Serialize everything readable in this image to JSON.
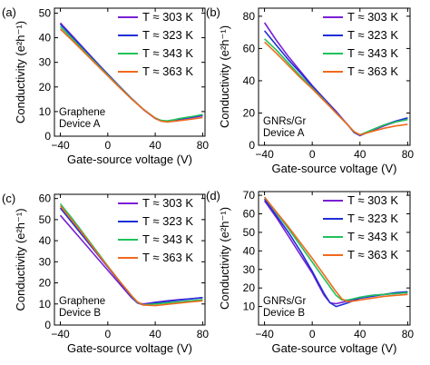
{
  "chart_data": [
    {
      "type": "line",
      "panel_label": "(a)",
      "annotation": [
        "Graphene",
        "Device A"
      ],
      "xlabel": "Gate-source voltage (V)",
      "ylabel": "Conductivity (e²h⁻¹)",
      "xlim": [
        -45,
        82
      ],
      "ylim": [
        0,
        52
      ],
      "xticks": [
        -40,
        0,
        40,
        80
      ],
      "yticks": [
        0,
        10,
        20,
        30,
        40,
        50
      ],
      "legend_position": "top-right",
      "series": [
        {
          "name": "T ≈ 303 K",
          "color": "#7a1fd6",
          "x": [
            -40,
            -30,
            -20,
            -10,
            0,
            10,
            20,
            30,
            40,
            45,
            50,
            55,
            60,
            70,
            80
          ],
          "y": [
            46,
            40.8,
            35.5,
            30.3,
            25.2,
            20.2,
            15.3,
            10.8,
            7.2,
            6.2,
            6.0,
            6.3,
            6.8,
            7.5,
            8.3
          ]
        },
        {
          "name": "T ≈ 323 K",
          "color": "#1f2fd6",
          "x": [
            -40,
            -30,
            -20,
            -10,
            0,
            10,
            20,
            30,
            40,
            45,
            50,
            55,
            60,
            70,
            80
          ],
          "y": [
            45.5,
            40.4,
            35.2,
            30.1,
            25.1,
            20.1,
            15.3,
            10.9,
            7.3,
            6.3,
            6.1,
            6.4,
            6.9,
            7.7,
            8.6
          ]
        },
        {
          "name": "T ≈ 343 K",
          "color": "#1fc25a",
          "x": [
            -40,
            -30,
            -20,
            -10,
            0,
            10,
            20,
            30,
            40,
            45,
            50,
            55,
            60,
            70,
            80
          ],
          "y": [
            44.5,
            39.6,
            34.6,
            29.7,
            24.8,
            19.9,
            15.2,
            10.9,
            7.4,
            6.4,
            6.2,
            6.6,
            7.1,
            7.9,
            8.8
          ]
        },
        {
          "name": "T ≈ 363 K",
          "color": "#f06a1c",
          "x": [
            -40,
            -30,
            -20,
            -10,
            0,
            10,
            20,
            30,
            40,
            45,
            50,
            55,
            60,
            70,
            80
          ],
          "y": [
            43.5,
            38.9,
            34.1,
            29.3,
            24.5,
            19.7,
            15.1,
            10.9,
            7.3,
            6.1,
            5.8,
            6.0,
            6.3,
            6.9,
            7.6
          ]
        }
      ]
    },
    {
      "type": "line",
      "panel_label": "(b)",
      "annotation": [
        "GNRs/Gr",
        "Device A"
      ],
      "xlabel": "Gate-source voltage (V)",
      "ylabel": "Conductivity (e²h⁻¹)",
      "xlim": [
        -45,
        82
      ],
      "ylim": [
        0,
        85
      ],
      "xticks": [
        -40,
        0,
        40,
        80
      ],
      "yticks": [
        0,
        20,
        40,
        60,
        80
      ],
      "legend_position": "top-right",
      "series": [
        {
          "name": "T ≈ 303 K",
          "color": "#7a1fd6",
          "x": [
            -40,
            -30,
            -20,
            -10,
            0,
            10,
            20,
            30,
            35,
            40,
            50,
            60,
            70,
            80
          ],
          "y": [
            76,
            65,
            55,
            46,
            37,
            29,
            21,
            12.5,
            8,
            6,
            9,
            12,
            14.5,
            16
          ]
        },
        {
          "name": "T ≈ 323 K",
          "color": "#1f2fd6",
          "x": [
            -40,
            -30,
            -20,
            -10,
            0,
            10,
            20,
            30,
            35,
            40,
            50,
            60,
            70,
            80
          ],
          "y": [
            71,
            62,
            53,
            45,
            36.5,
            28.5,
            20.5,
            12.5,
            8,
            6,
            9.5,
            12.5,
            15,
            17
          ]
        },
        {
          "name": "T ≈ 343 K",
          "color": "#1fc25a",
          "x": [
            -40,
            -30,
            -20,
            -10,
            0,
            10,
            20,
            30,
            35,
            40,
            50,
            60,
            70,
            80
          ],
          "y": [
            66,
            59,
            51,
            43,
            35.5,
            28,
            20,
            12.5,
            8.5,
            6.5,
            9.5,
            12.5,
            14.5,
            16
          ]
        },
        {
          "name": "T ≈ 363 K",
          "color": "#f06a1c",
          "x": [
            -40,
            -30,
            -20,
            -10,
            0,
            10,
            20,
            30,
            35,
            40,
            50,
            60,
            70,
            80
          ],
          "y": [
            64,
            57,
            49.5,
            42,
            35,
            27.5,
            20,
            12.5,
            8.5,
            6.5,
            8.5,
            10.5,
            12,
            13
          ]
        }
      ]
    },
    {
      "type": "line",
      "panel_label": "(c)",
      "annotation": [
        "Graphene",
        "Device B"
      ],
      "xlabel": "Gate-source voltage (V)",
      "ylabel": "Conductivity (e²h⁻¹)",
      "xlim": [
        -45,
        82
      ],
      "ylim": [
        0,
        62
      ],
      "xticks": [
        -40,
        0,
        40,
        80
      ],
      "yticks": [
        0,
        10,
        20,
        30,
        40,
        50,
        60
      ],
      "legend_position": "top-right",
      "series": [
        {
          "name": "T ≈ 303 K",
          "color": "#7a1fd6",
          "x": [
            -40,
            -30,
            -20,
            -10,
            0,
            10,
            20,
            25,
            30,
            40,
            50,
            60,
            70,
            80
          ],
          "y": [
            52,
            45.5,
            39,
            32.5,
            26,
            19.5,
            13,
            10.5,
            10,
            10.8,
            11.5,
            12,
            12.5,
            13
          ]
        },
        {
          "name": "T ≈ 323 K",
          "color": "#1f2fd6",
          "x": [
            -40,
            -30,
            -20,
            -10,
            0,
            10,
            20,
            25,
            30,
            40,
            50,
            60,
            70,
            80
          ],
          "y": [
            55.5,
            48.5,
            41.5,
            34.5,
            27.5,
            20.5,
            13.5,
            10.5,
            9.5,
            10.5,
            11.2,
            11.8,
            12.4,
            13
          ]
        },
        {
          "name": "T ≈ 343 K",
          "color": "#1fc25a",
          "x": [
            -40,
            -30,
            -20,
            -10,
            0,
            10,
            20,
            25,
            30,
            40,
            50,
            60,
            70,
            80
          ],
          "y": [
            57.5,
            50.5,
            43,
            35.5,
            28,
            20.8,
            13.8,
            10.8,
            9.6,
            10,
            10.5,
            11,
            11.5,
            12
          ]
        },
        {
          "name": "T ≈ 363 K",
          "color": "#f06a1c",
          "x": [
            -40,
            -30,
            -20,
            -10,
            0,
            10,
            20,
            25,
            30,
            40,
            50,
            60,
            70,
            80
          ],
          "y": [
            56.5,
            49.5,
            42.5,
            35,
            27.8,
            20.8,
            14,
            11,
            9.5,
            9.2,
            9.8,
            10.4,
            11,
            11.5
          ]
        }
      ]
    },
    {
      "type": "line",
      "panel_label": "(d)",
      "annotation": [
        "GNRs/Gr",
        "Device B"
      ],
      "xlabel": "Gate-source voltage (V)",
      "ylabel": "Conductivity (e²h⁻¹)",
      "xlim": [
        -45,
        82
      ],
      "ylim": [
        0,
        72
      ],
      "xticks": [
        -40,
        0,
        40,
        80
      ],
      "yticks": [
        10,
        20,
        30,
        40,
        50,
        60,
        70
      ],
      "legend_position": "top-right",
      "series": [
        {
          "name": "T ≈ 303 K",
          "color": "#7a1fd6",
          "x": [
            -40,
            -30,
            -20,
            -10,
            0,
            5,
            10,
            15,
            20,
            30,
            40,
            50,
            60,
            70,
            80
          ],
          "y": [
            67,
            58,
            48,
            38,
            28,
            22,
            16,
            12,
            11.5,
            13,
            15,
            16,
            16.5,
            17,
            17.5
          ]
        },
        {
          "name": "T ≈ 323 K",
          "color": "#1f2fd6",
          "x": [
            -40,
            -30,
            -20,
            -10,
            0,
            5,
            10,
            15,
            20,
            30,
            40,
            50,
            60,
            70,
            80
          ],
          "y": [
            68,
            59,
            50,
            40,
            29,
            23,
            17,
            12,
            10,
            12,
            14.5,
            15.5,
            16.5,
            17.5,
            18
          ]
        },
        {
          "name": "T ≈ 343 K",
          "color": "#1fc25a",
          "x": [
            -40,
            -30,
            -20,
            -10,
            0,
            5,
            10,
            15,
            20,
            25,
            30,
            40,
            50,
            60,
            70,
            80
          ],
          "y": [
            69,
            60.5,
            52,
            43,
            34,
            29.5,
            25,
            20.5,
            16,
            13.5,
            13.5,
            15,
            16,
            16.5,
            17,
            17.5
          ]
        },
        {
          "name": "T ≈ 363 K",
          "color": "#f06a1c",
          "x": [
            -40,
            -30,
            -20,
            -10,
            0,
            5,
            10,
            15,
            20,
            25,
            30,
            40,
            50,
            60,
            70,
            80
          ],
          "y": [
            69,
            61,
            53,
            44.5,
            36,
            31.5,
            27,
            22.5,
            18,
            14,
            12.5,
            13.5,
            14.5,
            15.5,
            16,
            16.5
          ]
        }
      ]
    }
  ]
}
